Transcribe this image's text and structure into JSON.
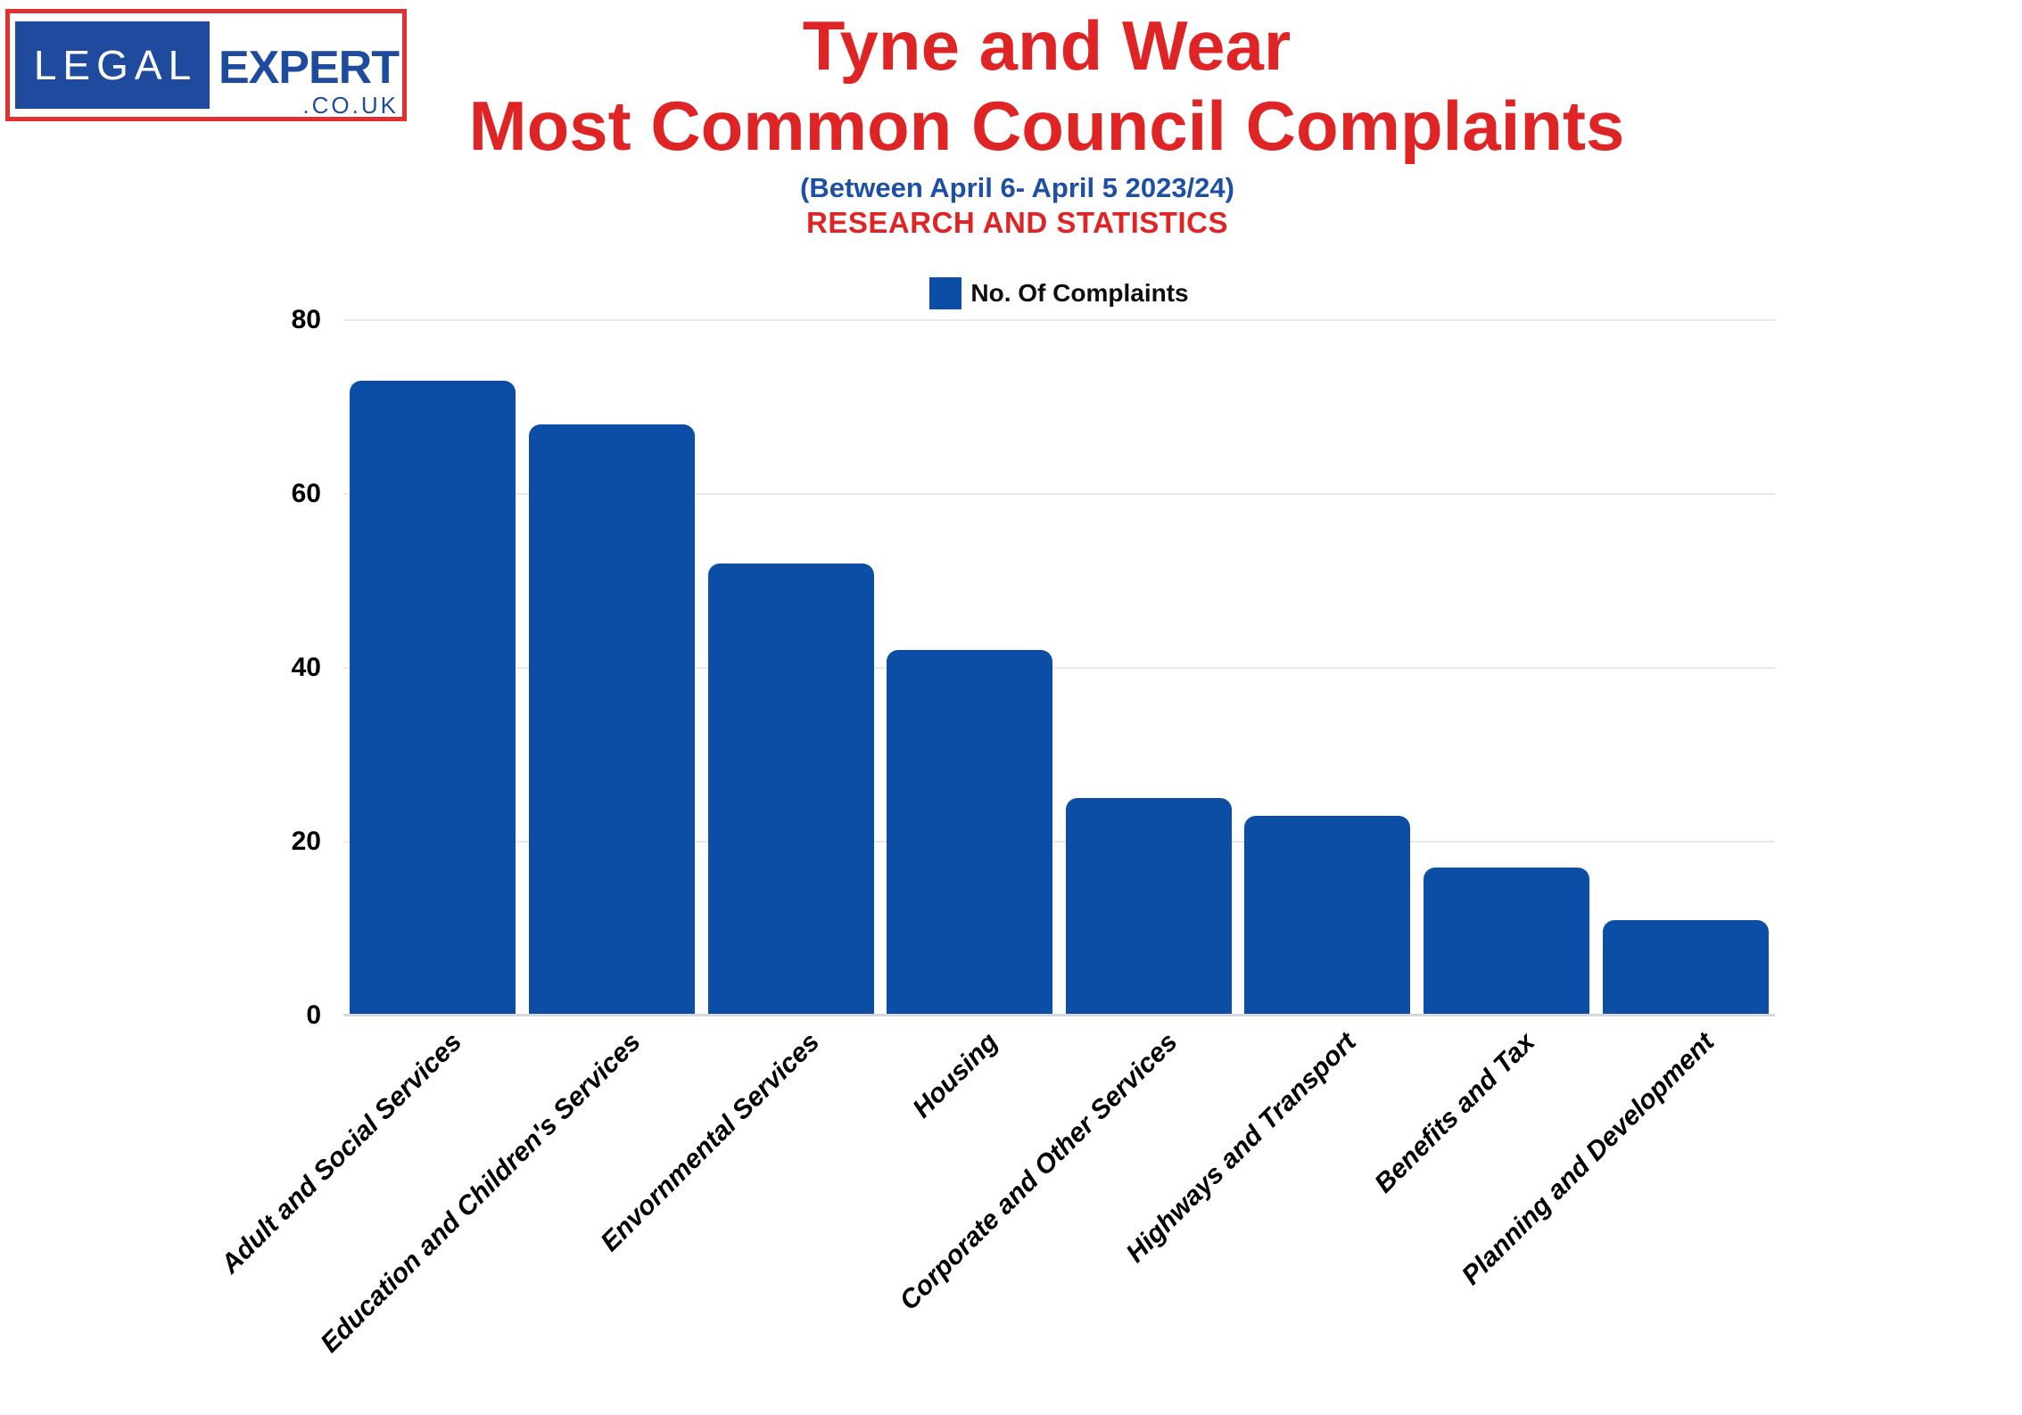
{
  "logo": {
    "legal": "LEGAL",
    "expert": "EXPERT",
    "couk": ".CO.UK"
  },
  "header": {
    "title_line1": "Tyne and Wear",
    "title_line2": "Most Common Council Complaints",
    "subtitle": "(Between April 6- April 5 2023/24)",
    "subtitle2": "RESEARCH AND STATISTICS"
  },
  "colors": {
    "bar_blue": "#0c4da6",
    "title_red": "#de2424",
    "subtitle_blue": "#1c4fa5",
    "logo_blue": "#1e4b9e",
    "logo_border_red": "#e03030",
    "gridline": "#e9e9e9",
    "baseline": "#d8d8d8"
  },
  "chart_data": {
    "type": "bar",
    "title": "Tyne and Wear Most Common Council Complaints",
    "subtitle": "(Between April 6- April 5 2023/24) RESEARCH AND STATISTICS",
    "legend_label": "No. Of Complaints",
    "legend_position": "top-center",
    "categories": [
      "Adult and Social Services",
      "Education and Children's Services",
      "Envornmental Services",
      "Housing",
      "Corporate and Other Services",
      "Highways and Transport",
      "Benefits and Tax",
      "Planning and Development"
    ],
    "values": [
      73,
      68,
      52,
      42,
      25,
      23,
      17,
      11
    ],
    "xlabel": "",
    "ylabel": "",
    "ylim": [
      0,
      80
    ],
    "yticks": [
      0,
      20,
      40,
      60,
      80
    ],
    "grid": "horizontal",
    "bar_color": "#0c4da6"
  }
}
